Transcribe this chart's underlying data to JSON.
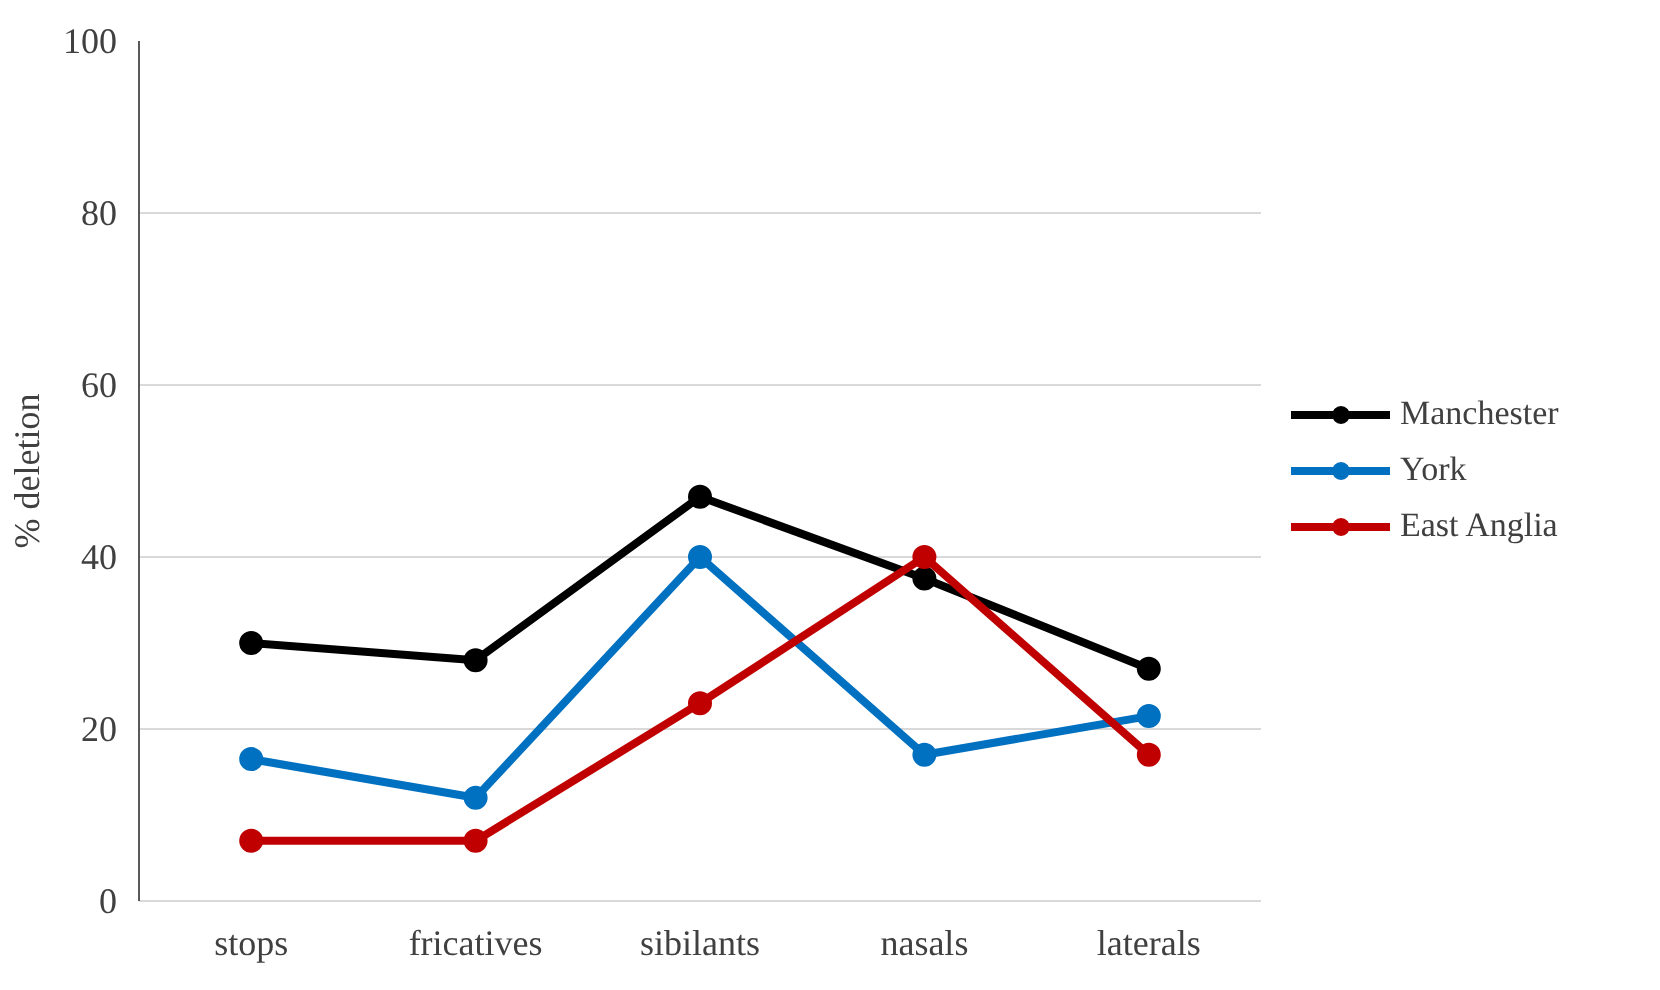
{
  "chart_data": {
    "type": "line",
    "ylabel": "% deletion",
    "categories": [
      "stops",
      "fricatives",
      "sibilants",
      "nasals",
      "laterals"
    ],
    "series": [
      {
        "name": "Manchester",
        "color": "#000000",
        "values": [
          30,
          28,
          47,
          37.5,
          27
        ]
      },
      {
        "name": "York",
        "color": "#0070c0",
        "values": [
          16.5,
          12,
          40,
          17,
          21.5
        ]
      },
      {
        "name": "East Anglia",
        "color": "#c00000",
        "values": [
          7,
          7,
          23,
          40,
          17
        ]
      }
    ],
    "ylim": [
      0,
      100
    ],
    "yticks": [
      0,
      20,
      40,
      60,
      80,
      100
    ],
    "grid": "y",
    "legend": "right",
    "marker": "circle",
    "line_style": "solid"
  }
}
